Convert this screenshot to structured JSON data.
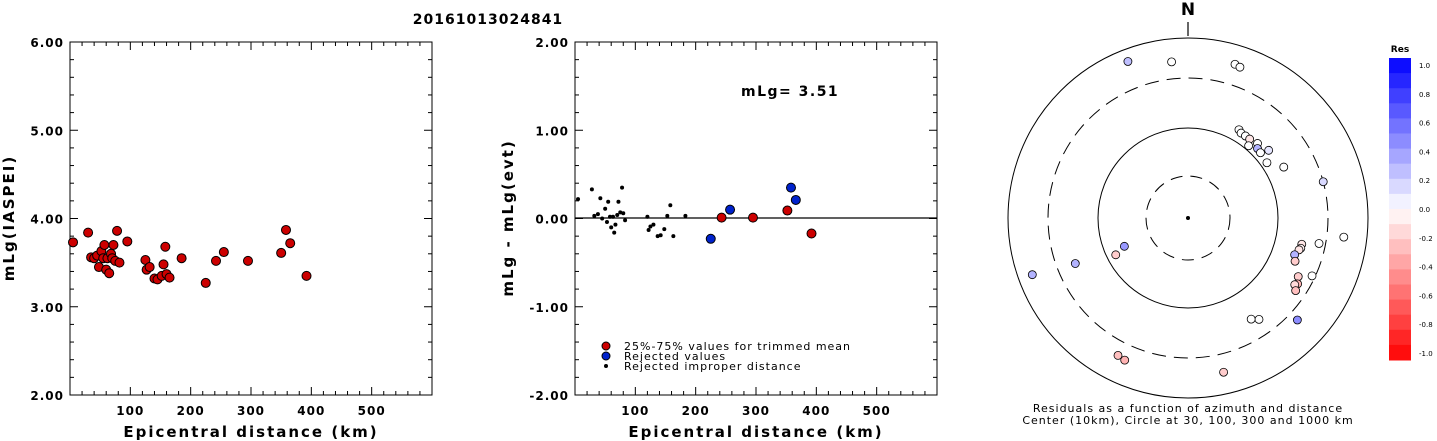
{
  "title": "20161013024841",
  "colors": {
    "trimmed": "#cc0000",
    "rejected": "#0022cc",
    "improper": "#000000"
  },
  "left_plot": {
    "ylabel": "mLg(IASPEI)",
    "xlabel": "Epicentral distance (km)",
    "xticks": [
      "100",
      "200",
      "300",
      "400",
      "500"
    ],
    "yticks": [
      "2.00",
      "3.00",
      "4.00",
      "5.00",
      "6.00"
    ]
  },
  "middle_plot": {
    "ylabel": "mLg - mLg(evt)",
    "xlabel": "Epicentral distance (km)",
    "xticks": [
      "100",
      "200",
      "300",
      "400",
      "500"
    ],
    "yticks": [
      "-2.00",
      "-1.00",
      "0.00",
      "1.00",
      "2.00"
    ],
    "annotation": "mLg= 3.51",
    "legend": [
      "25%-75% values for trimmed mean",
      "Rejected values",
      "Rejected improper distance"
    ]
  },
  "polar_plot": {
    "north_label": "N",
    "caption_line1": "Residuals as a function of azimuth and distance",
    "caption_line2": "Center (10km), Circle at 30, 100, 300 and 1000 km"
  },
  "colorbar": {
    "title": "Res",
    "ticks": [
      "1.0",
      "0.8",
      "0.6",
      "0.4",
      "0.2",
      "0.0",
      "-0.2",
      "-0.4",
      "-0.6",
      "-0.8",
      "-1.0"
    ]
  },
  "chart_data": [
    {
      "type": "scatter",
      "title": "20161013024841",
      "xlabel": "Epicentral distance (km)",
      "ylabel": "mLg(IASPEI)",
      "xlim": [
        0,
        600
      ],
      "ylim": [
        2.0,
        6.0
      ],
      "points": [
        [
          5,
          3.73
        ],
        [
          30,
          3.84
        ],
        [
          35,
          3.56
        ],
        [
          40,
          3.55
        ],
        [
          45,
          3.58
        ],
        [
          48,
          3.45
        ],
        [
          52,
          3.63
        ],
        [
          55,
          3.55
        ],
        [
          57,
          3.7
        ],
        [
          60,
          3.42
        ],
        [
          62,
          3.55
        ],
        [
          65,
          3.38
        ],
        [
          68,
          3.6
        ],
        [
          70,
          3.55
        ],
        [
          72,
          3.7
        ],
        [
          75,
          3.52
        ],
        [
          78,
          3.86
        ],
        [
          82,
          3.5
        ],
        [
          95,
          3.74
        ],
        [
          125,
          3.53
        ],
        [
          127,
          3.42
        ],
        [
          132,
          3.45
        ],
        [
          140,
          3.32
        ],
        [
          145,
          3.31
        ],
        [
          152,
          3.35
        ],
        [
          155,
          3.48
        ],
        [
          158,
          3.68
        ],
        [
          160,
          3.37
        ],
        [
          165,
          3.33
        ],
        [
          185,
          3.55
        ],
        [
          225,
          3.27
        ],
        [
          242,
          3.52
        ],
        [
          255,
          3.62
        ],
        [
          295,
          3.52
        ],
        [
          350,
          3.61
        ],
        [
          358,
          3.87
        ],
        [
          365,
          3.72
        ],
        [
          392,
          3.35
        ]
      ]
    },
    {
      "type": "scatter",
      "xlabel": "Epicentral distance (km)",
      "ylabel": "mLg - mLg(evt)",
      "xlim": [
        0,
        600
      ],
      "ylim": [
        -2.0,
        2.0
      ],
      "series": [
        {
          "name": "25%-75% values for trimmed mean",
          "points": [
            [
              243,
              0.01
            ],
            [
              295,
              0.01
            ],
            [
              352,
              0.09
            ],
            [
              392,
              -0.17
            ]
          ]
        },
        {
          "name": "Rejected values",
          "points": [
            [
              225,
              -0.23
            ],
            [
              257,
              0.1
            ],
            [
              358,
              0.35
            ],
            [
              366,
              0.21
            ]
          ]
        },
        {
          "name": "Rejected improper distance",
          "points": [
            [
              5,
              0.22
            ],
            [
              28,
              0.33
            ],
            [
              32,
              0.03
            ],
            [
              38,
              0.05
            ],
            [
              42,
              0.23
            ],
            [
              45,
              0.0
            ],
            [
              50,
              0.11
            ],
            [
              53,
              -0.04
            ],
            [
              55,
              0.19
            ],
            [
              58,
              0.02
            ],
            [
              60,
              -0.1
            ],
            [
              63,
              0.02
            ],
            [
              65,
              -0.16
            ],
            [
              67,
              -0.07
            ],
            [
              70,
              0.04
            ],
            [
              72,
              0.19
            ],
            [
              75,
              0.07
            ],
            [
              78,
              0.35
            ],
            [
              80,
              0.06
            ],
            [
              83,
              -0.02
            ],
            [
              120,
              0.02
            ],
            [
              122,
              -0.13
            ],
            [
              125,
              -0.09
            ],
            [
              130,
              -0.07
            ],
            [
              137,
              -0.2
            ],
            [
              142,
              -0.19
            ],
            [
              148,
              -0.12
            ],
            [
              153,
              0.03
            ],
            [
              158,
              0.15
            ],
            [
              163,
              -0.2
            ],
            [
              183,
              0.03
            ]
          ]
        }
      ]
    },
    {
      "type": "scatter",
      "subtype": "polar",
      "title": "Residuals as a function of azimuth and distance",
      "points": [
        {
          "az": 339,
          "dist": 690,
          "res": 0.25
        },
        {
          "az": 354,
          "dist": 500,
          "res": 0.0
        },
        {
          "az": 17,
          "dist": 560,
          "res": 0.0
        },
        {
          "az": 19,
          "dist": 540,
          "res": 0.0
        },
        {
          "az": 30,
          "dist": 130,
          "res": 0.0
        },
        {
          "az": 32,
          "dist": 125,
          "res": 0.0
        },
        {
          "az": 35,
          "dist": 125,
          "res": 0.0
        },
        {
          "az": 38,
          "dist": 125,
          "res": -0.1
        },
        {
          "az": 40,
          "dist": 110,
          "res": 0.0
        },
        {
          "az": 43,
          "dist": 130,
          "res": 0.0
        },
        {
          "az": 45,
          "dist": 120,
          "res": 0.3
        },
        {
          "az": 48,
          "dist": 118,
          "res": 0.0
        },
        {
          "az": 50,
          "dist": 140,
          "res": 0.1
        },
        {
          "az": 55,
          "dist": 115,
          "res": 0.0
        },
        {
          "az": 62,
          "dist": 150,
          "res": 0.0
        },
        {
          "az": 75,
          "dist": 300,
          "res": 0.15
        },
        {
          "az": 97,
          "dist": 500,
          "res": 0.0
        },
        {
          "az": 101,
          "dist": 260,
          "res": 0.0
        },
        {
          "az": 103,
          "dist": 180,
          "res": -0.1
        },
        {
          "az": 105,
          "dist": 180,
          "res": -0.05
        },
        {
          "az": 106,
          "dist": 175,
          "res": -0.1
        },
        {
          "az": 109,
          "dist": 165,
          "res": 0.3
        },
        {
          "az": 112,
          "dist": 175,
          "res": -0.2
        },
        {
          "az": 115,
          "dist": 280,
          "res": 0.0
        },
        {
          "az": 118,
          "dist": 215,
          "res": -0.2
        },
        {
          "az": 121,
          "dist": 230,
          "res": -0.3
        },
        {
          "az": 122,
          "dist": 220,
          "res": -0.15
        },
        {
          "az": 124,
          "dist": 240,
          "res": -0.25
        },
        {
          "az": 133,
          "dist": 400,
          "res": 0.45
        },
        {
          "az": 145,
          "dist": 210,
          "res": 0.0
        },
        {
          "az": 148,
          "dist": 190,
          "res": 0.0
        },
        {
          "az": 167,
          "dist": 520,
          "res": -0.2
        },
        {
          "az": 204,
          "dist": 480,
          "res": -0.3
        },
        {
          "az": 207,
          "dist": 460,
          "res": -0.25
        },
        {
          "az": 243,
          "dist": 80,
          "res": -0.2
        },
        {
          "az": 246,
          "dist": 60,
          "res": 0.4
        },
        {
          "az": 248,
          "dist": 200,
          "res": 0.3
        },
        {
          "az": 250,
          "dist": 650,
          "res": 0.3
        }
      ]
    }
  ]
}
